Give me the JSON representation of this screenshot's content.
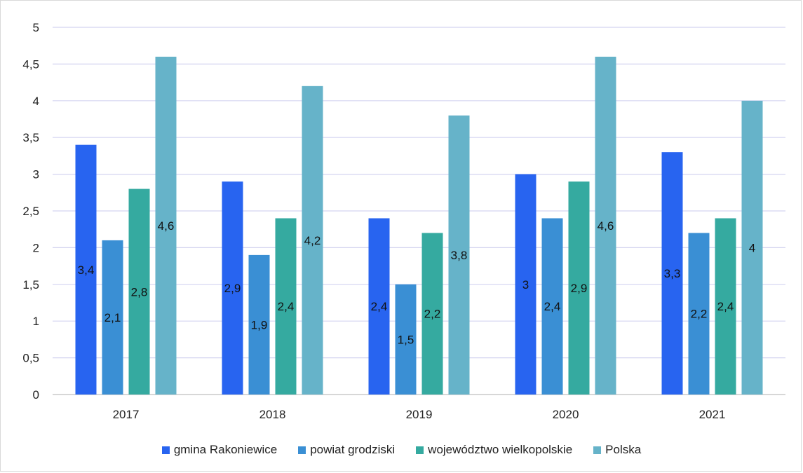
{
  "chart_data": {
    "type": "bar",
    "categories": [
      "2017",
      "2018",
      "2019",
      "2020",
      "2021"
    ],
    "series": [
      {
        "name": "gmina Rakoniewice",
        "color": "#2864f0",
        "values": [
          3.4,
          2.9,
          2.4,
          3,
          3.3
        ],
        "labels": [
          "3,4",
          "2,9",
          "2,4",
          "3",
          "3,3"
        ]
      },
      {
        "name": "powiat grodziski",
        "color": "#3a8fd4",
        "values": [
          2.1,
          1.9,
          1.5,
          2.4,
          2.2
        ],
        "labels": [
          "2,1",
          "1,9",
          "1,5",
          "2,4",
          "2,2"
        ]
      },
      {
        "name": "województwo wielkopolskie",
        "color": "#35aaa0",
        "values": [
          2.8,
          2.4,
          2.2,
          2.9,
          2.4
        ],
        "labels": [
          "2,8",
          "2,4",
          "2,2",
          "2,9",
          "2,4"
        ]
      },
      {
        "name": "Polska",
        "color": "#66b3c9",
        "values": [
          4.6,
          4.2,
          3.8,
          4.6,
          4
        ],
        "labels": [
          "4,6",
          "4,2",
          "3,8",
          "4,6",
          "4"
        ]
      }
    ],
    "yticks": [
      "0",
      "0,5",
      "1",
      "1,5",
      "2",
      "2,5",
      "3",
      "3,5",
      "4",
      "4,5",
      "5"
    ],
    "ylim": [
      0,
      5
    ],
    "grid": true,
    "legend_position": "bottom",
    "title": "",
    "xlabel": "",
    "ylabel": ""
  }
}
